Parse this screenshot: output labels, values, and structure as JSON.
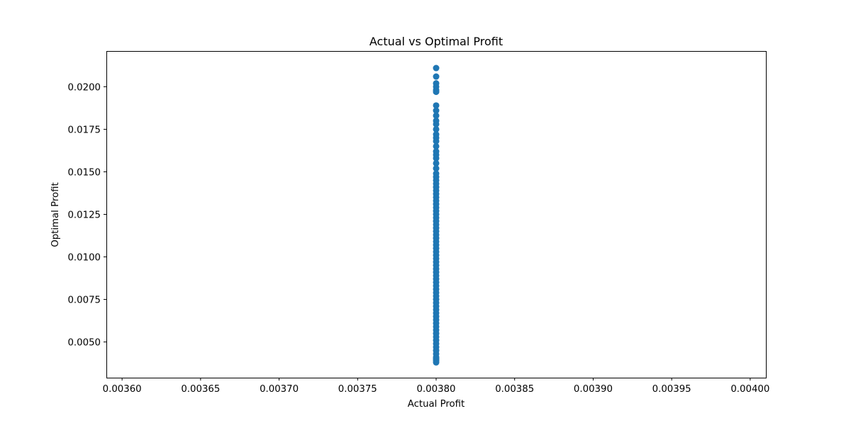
{
  "chart_data": {
    "type": "scatter",
    "title": "Actual vs Optimal Profit",
    "xlabel": "Actual Profit",
    "ylabel": "Optimal Profit",
    "xlim": [
      0.00359,
      0.00401
    ],
    "ylim": [
      0.0029,
      0.0221
    ],
    "x_ticks": [
      0.0036,
      0.00365,
      0.0037,
      0.00375,
      0.0038,
      0.00385,
      0.0039,
      0.00395,
      0.004
    ],
    "x_tick_labels": [
      "0.00360",
      "0.00365",
      "0.00370",
      "0.00375",
      "0.00380",
      "0.00385",
      "0.00390",
      "0.00395",
      "0.00400"
    ],
    "y_ticks": [
      0.005,
      0.0075,
      0.01,
      0.0125,
      0.015,
      0.0175,
      0.02
    ],
    "y_tick_labels": [
      "0.0050",
      "0.0075",
      "0.0100",
      "0.0125",
      "0.0150",
      "0.0175",
      "0.0200"
    ],
    "grid": false,
    "series": [
      {
        "color": "#1f77b4",
        "x_constant": 0.0038,
        "y": [
          0.0211,
          0.0206,
          0.0202,
          0.02,
          0.0198,
          0.0197,
          0.0189,
          0.0186,
          0.0183,
          0.018,
          0.0178,
          0.0175,
          0.0172,
          0.017,
          0.0168,
          0.0165,
          0.0162,
          0.016,
          0.0158,
          0.0155,
          0.0152,
          0.0149,
          0.0147,
          0.0145,
          0.0143,
          0.0141,
          0.0139,
          0.0137,
          0.0135,
          0.0133,
          0.0131,
          0.0129,
          0.0127,
          0.0125,
          0.0123,
          0.0121,
          0.0119,
          0.0117,
          0.0115,
          0.0113,
          0.0111,
          0.0109,
          0.0107,
          0.0105,
          0.0103,
          0.0101,
          0.0099,
          0.0097,
          0.0095,
          0.0093,
          0.0091,
          0.0089,
          0.0087,
          0.0085,
          0.0083,
          0.0081,
          0.0079,
          0.0077,
          0.0075,
          0.0073,
          0.0071,
          0.0069,
          0.0067,
          0.0065,
          0.0063,
          0.0061,
          0.0059,
          0.0057,
          0.0055,
          0.0053,
          0.0051,
          0.0049,
          0.0047,
          0.0045,
          0.0043,
          0.0041,
          0.004,
          0.0039,
          0.0038
        ]
      }
    ]
  }
}
